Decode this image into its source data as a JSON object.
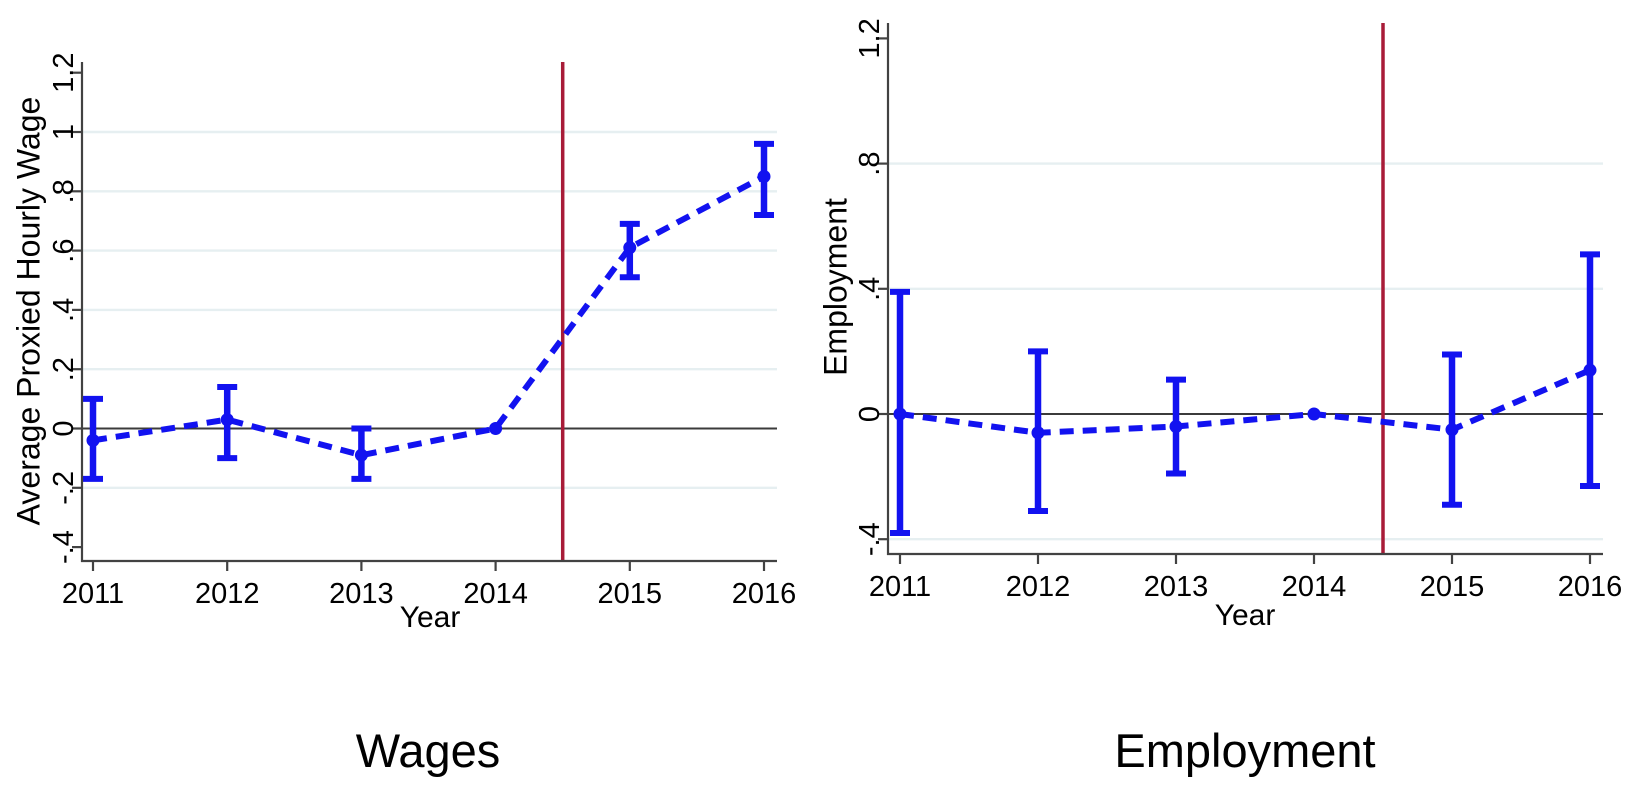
{
  "colors": {
    "series_blue": "#1212f0",
    "treatment_line_red": "#a81c38",
    "gridline": "#e6eff1",
    "zero_line": "#3b3b3b",
    "axis": "#424242",
    "text": "#000000",
    "background": "#ffffff"
  },
  "chart_data": [
    {
      "type": "line",
      "subtype": "event-study-errorbar",
      "title": "Wages",
      "xlabel": "Year",
      "ylabel": "Average Proxied Hourly Wage",
      "x": [
        2011,
        2012,
        2013,
        2014,
        2015,
        2016
      ],
      "series": [
        {
          "values": [
            -0.04,
            0.03,
            -0.09,
            0,
            0.61,
            0.85
          ],
          "ci_low": [
            -0.17,
            -0.1,
            -0.17,
            null,
            0.51,
            0.72
          ],
          "ci_high": [
            0.1,
            0.14,
            0.0,
            null,
            0.69,
            0.96
          ]
        }
      ],
      "vline_x": 2014.5,
      "xtick_labels": [
        "2011",
        "2012",
        "2013",
        "2014",
        "2015",
        "2016"
      ],
      "ytick_values": [
        -0.4,
        -0.2,
        0,
        0.2,
        0.4,
        0.6,
        0.8,
        1,
        1.2
      ],
      "ytick_labels": [
        "-.4",
        "-.2",
        "0",
        ".2",
        ".4",
        ".6",
        ".8",
        "1",
        "1.2"
      ],
      "grid_values": [
        -0.2,
        0.2,
        0.4,
        0.6,
        0.8,
        1
      ],
      "zero_line": 0,
      "ylim": [
        -0.45,
        1.24
      ],
      "xlim": [
        2010.92,
        2016.1
      ],
      "grid": true,
      "legend": "none",
      "line_style": "dashed"
    },
    {
      "type": "line",
      "subtype": "event-study-errorbar",
      "title": "Employment",
      "xlabel": "Year",
      "ylabel": "Employment",
      "x": [
        2011,
        2012,
        2013,
        2014,
        2015,
        2016
      ],
      "series": [
        {
          "values": [
            0.0,
            -0.06,
            -0.04,
            0,
            -0.05,
            0.14
          ],
          "ci_low": [
            -0.38,
            -0.31,
            -0.19,
            null,
            -0.29,
            -0.23
          ],
          "ci_high": [
            0.39,
            0.2,
            0.11,
            null,
            0.19,
            0.51
          ]
        }
      ],
      "vline_x": 2014.5,
      "xtick_labels": [
        "2011",
        "2012",
        "2013",
        "2014",
        "2015",
        "2016"
      ],
      "ytick_values": [
        -0.4,
        0,
        0.4,
        0.8,
        1.2
      ],
      "ytick_labels": [
        "-.4",
        "0",
        ".4",
        ".8",
        "1.2"
      ],
      "grid_values": [
        -0.4,
        0.4,
        0.8
      ],
      "zero_line": 0,
      "ylim": [
        -0.45,
        1.24
      ],
      "xlim": [
        2010.91,
        2016.09
      ],
      "grid": true,
      "legend": "none",
      "line_style": "dashed"
    }
  ]
}
